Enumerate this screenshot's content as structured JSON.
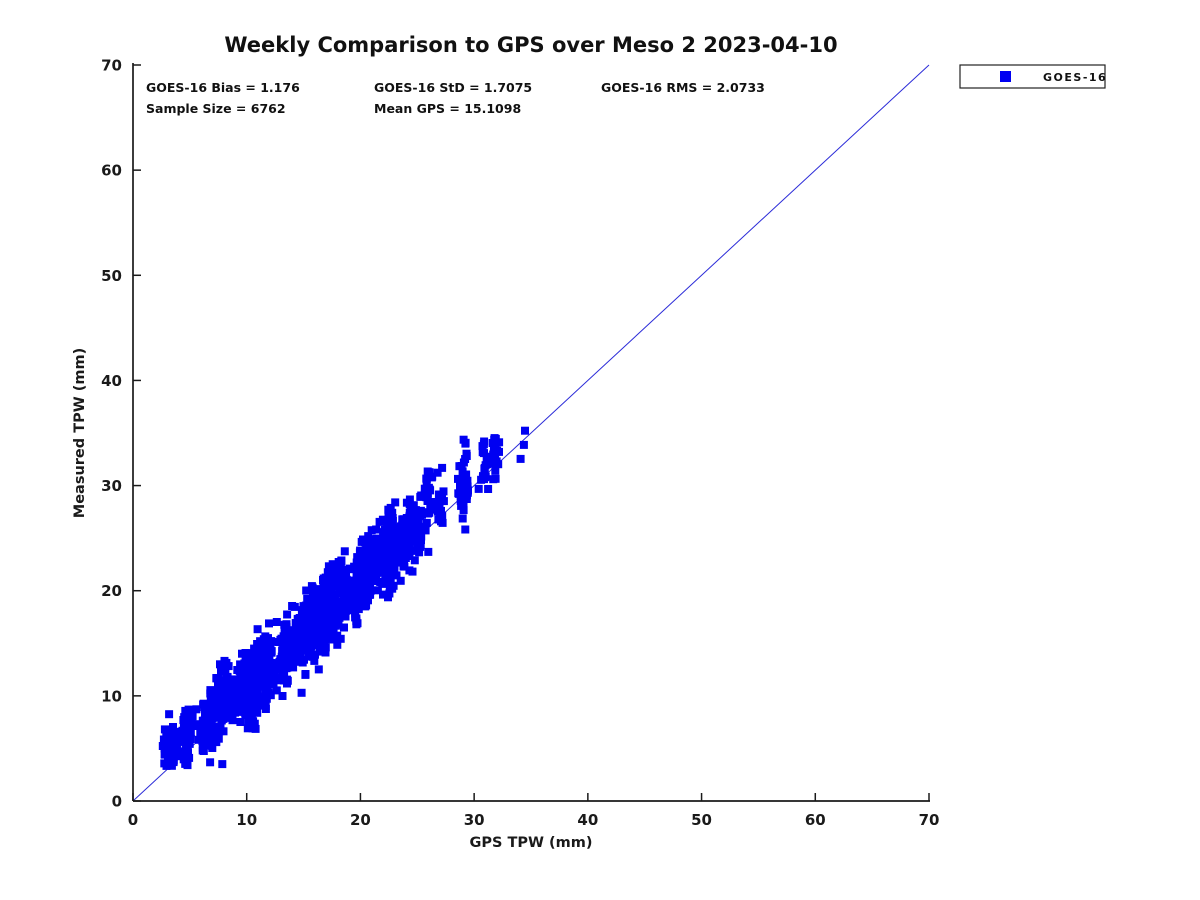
{
  "figure": {
    "title": "Weekly Comparison to GPS over Meso 2 2023-04-10",
    "stats_lines": {
      "bias": "GOES-16 Bias = 1.176",
      "std": "GOES-16 StD = 1.7075",
      "rms": "GOES-16 RMS = 2.0733",
      "sample": "Sample Size = 6762",
      "mean_gps": "Mean GPS = 15.1098"
    },
    "legend": {
      "entries": [
        {
          "label": "GOES-16",
          "marker": "square",
          "color": "#0000f2"
        }
      ]
    }
  },
  "chart_data": {
    "type": "scatter",
    "title": "Weekly Comparison to GPS over Meso 2 2023-04-10",
    "xlabel": "GPS TPW (mm)",
    "ylabel": "Measured TPW (mm)",
    "xlim": [
      0,
      70
    ],
    "ylim": [
      0,
      70
    ],
    "x_ticks": [
      0,
      10,
      20,
      30,
      40,
      50,
      60,
      70
    ],
    "y_ticks": [
      0,
      10,
      20,
      30,
      40,
      50,
      60,
      70
    ],
    "grid": false,
    "legend_position": "outside-top-right",
    "axis_color": "#1a1a1a",
    "reference_line": {
      "from": [
        0,
        0
      ],
      "to": [
        70,
        70
      ],
      "color": "#2b2bd8",
      "width": 1
    },
    "series": [
      {
        "name": "GOES-16",
        "marker": "square",
        "marker_color": "#0000f2",
        "marker_size_px": 8,
        "summary": {
          "bias": 1.176,
          "std": 1.7075,
          "rms": 2.0733,
          "sample_size": 6762,
          "mean_gps": 15.1098
        },
        "x_range_observed": [
          2.3,
          36.3
        ],
        "y_range_observed": [
          3.4,
          35.2
        ],
        "cloud_model": {
          "seed": 20230410,
          "rendered_points": 1800,
          "relation": "y = x + bias + station_offset + noise",
          "noise_sd": 1.15,
          "station_count": 80,
          "station_bias_sd": 0.7,
          "station_spread_min": 0.9,
          "station_spread_max": 1.8,
          "x_jitter_sd": 0.22,
          "x_bands": [
            [
              2.3,
              5.0,
              0.1
            ],
            [
              5.0,
              8.0,
              0.13
            ],
            [
              8.0,
              12.0,
              0.17
            ],
            [
              12.0,
              16.0,
              0.17
            ],
            [
              16.0,
              20.0,
              0.16
            ],
            [
              20.0,
              23.0,
              0.1
            ],
            [
              23.0,
              27.0,
              0.07
            ],
            [
              27.0,
              31.0,
              0.05
            ],
            [
              31.0,
              34.0,
              0.035
            ],
            [
              34.0,
              36.3,
              0.015
            ]
          ],
          "y_clip": [
            3.3,
            35.3
          ],
          "envelope": [
            -4.8,
            5.5
          ]
        }
      }
    ]
  }
}
